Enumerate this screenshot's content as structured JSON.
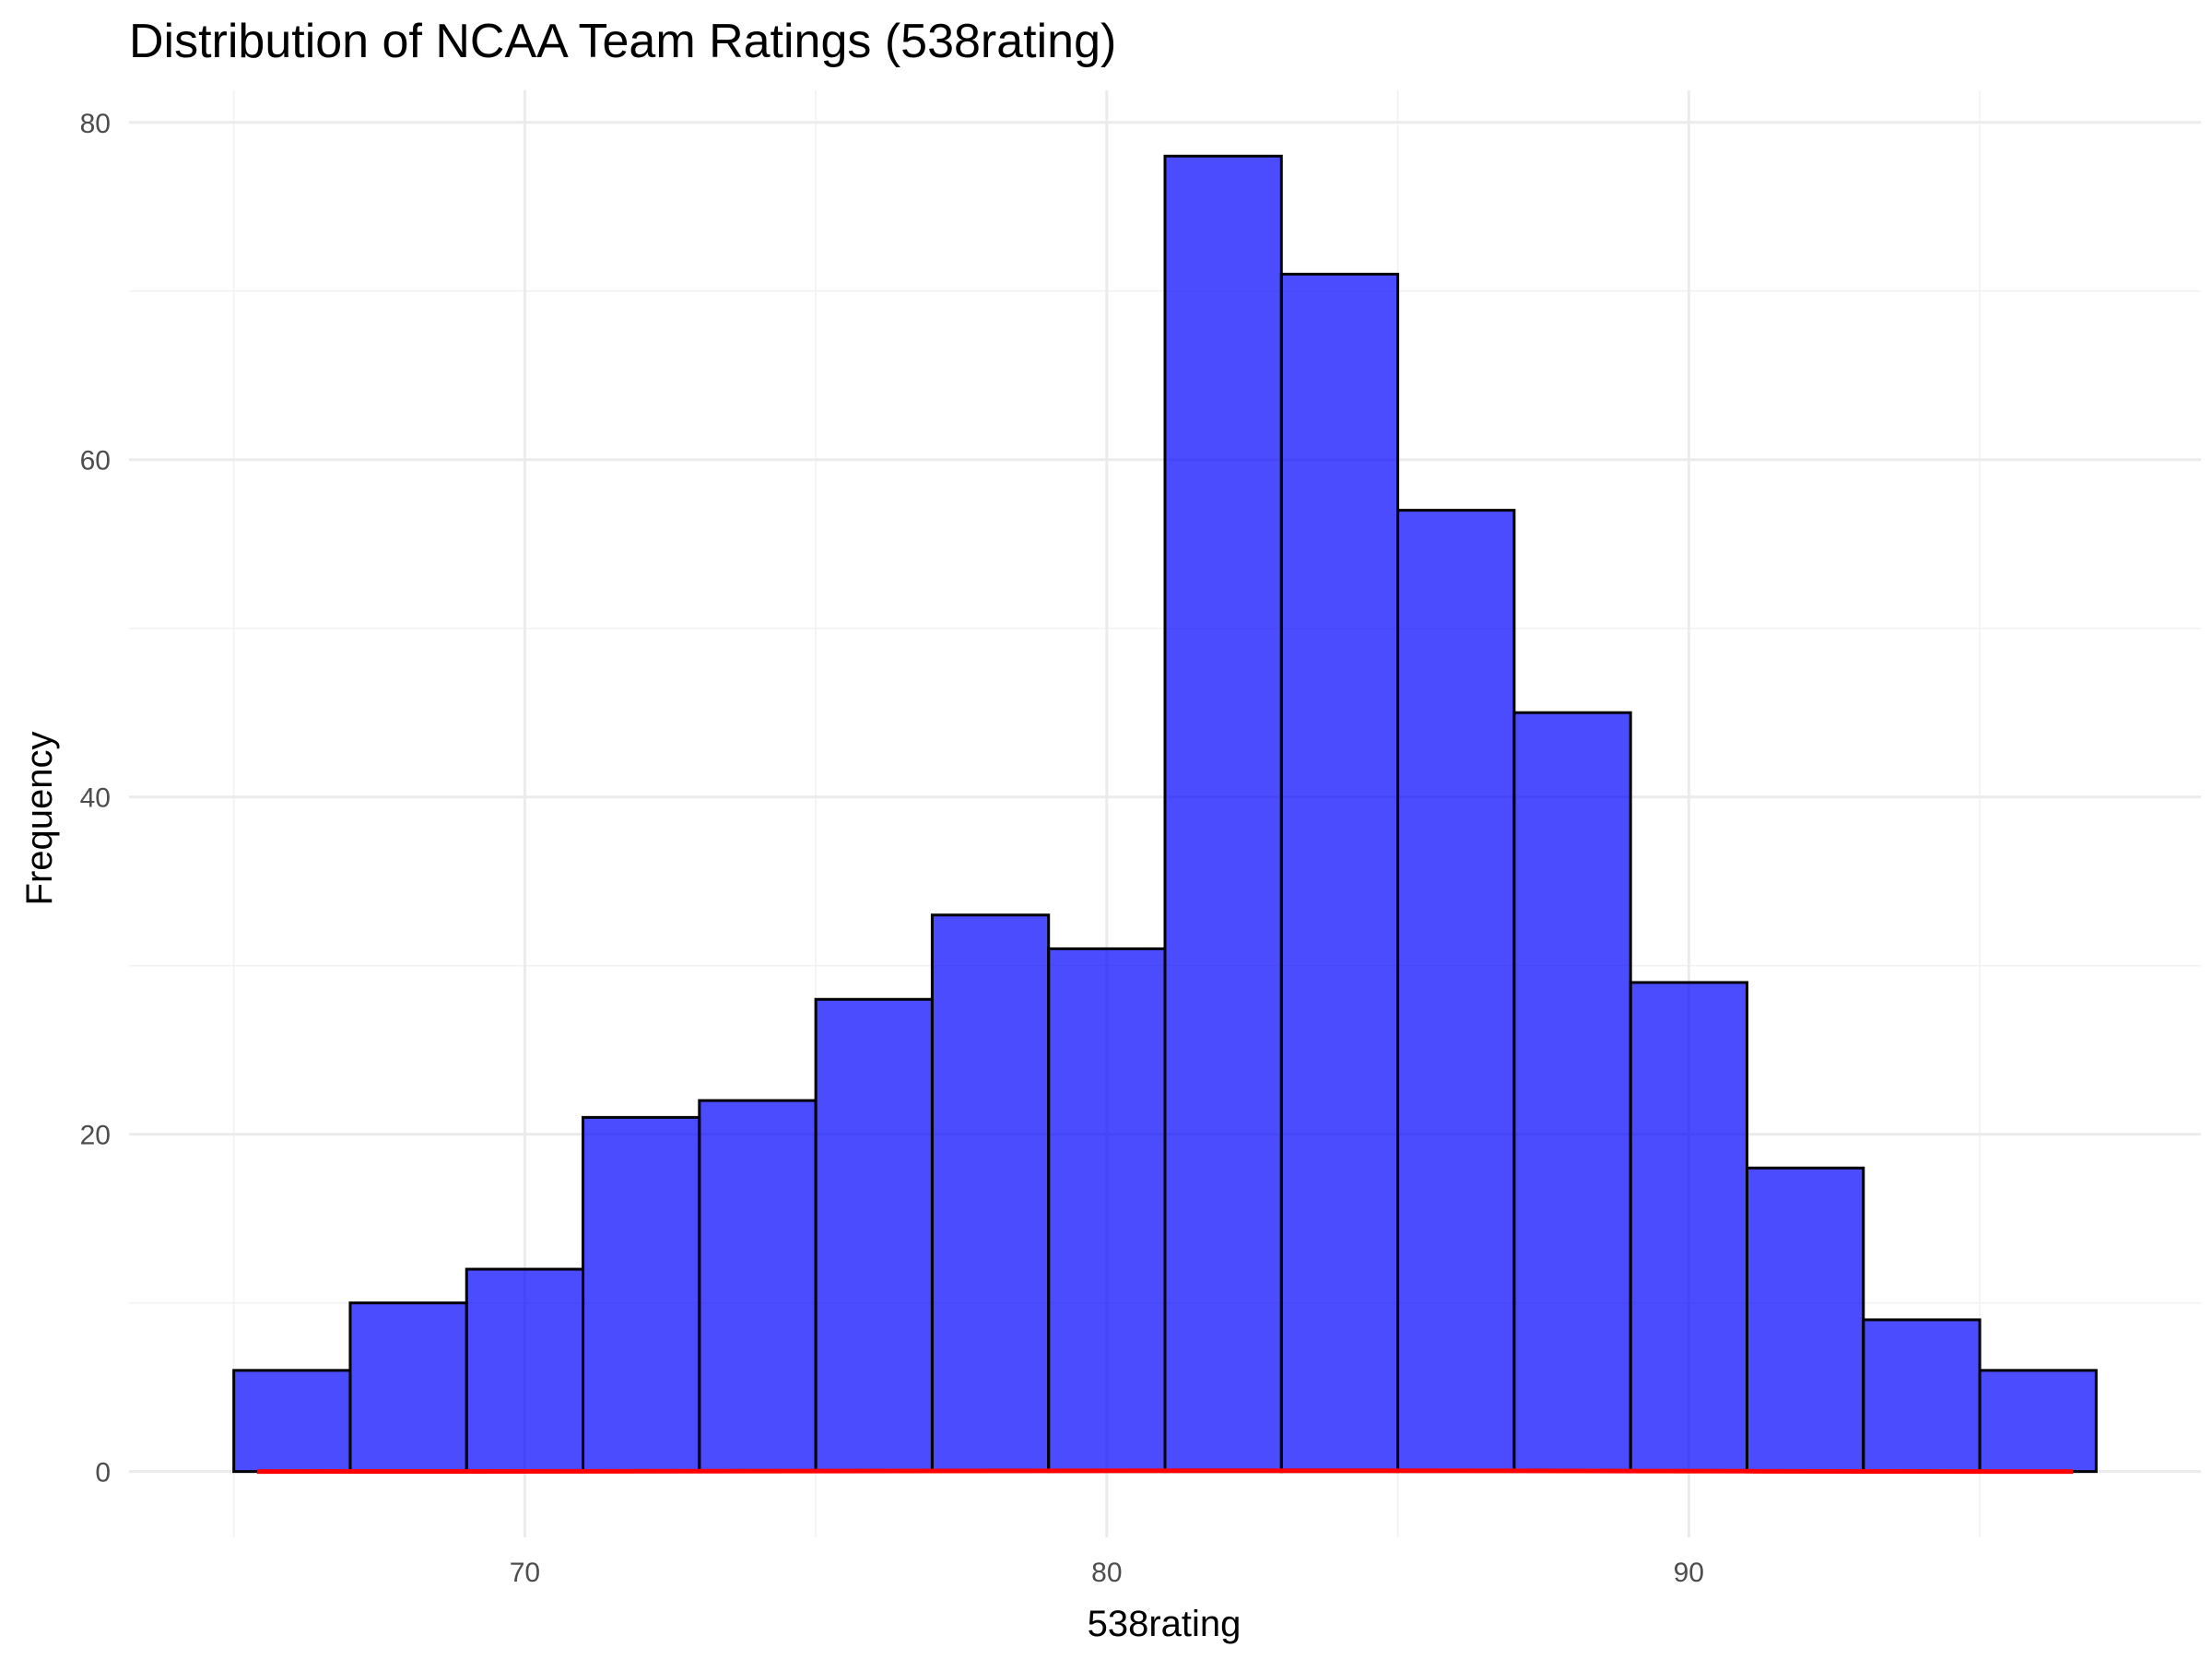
{
  "chart_data": {
    "type": "bar",
    "title": "Distribution of NCAA Team Ratings (538rating)",
    "xlabel": "538rating",
    "ylabel": "Frequency",
    "xlim": [
      63.2,
      98.8
    ],
    "ylim": [
      -3.9,
      81.9
    ],
    "x_ticks": [
      70,
      80,
      90
    ],
    "y_ticks": [
      0,
      20,
      40,
      60,
      80
    ],
    "grid": true,
    "bin_width": 2,
    "bins": [
      {
        "x0": 65,
        "x1": 67,
        "count": 6
      },
      {
        "x0": 67,
        "x1": 69,
        "count": 10
      },
      {
        "x0": 69,
        "x1": 71,
        "count": 12
      },
      {
        "x0": 71,
        "x1": 73,
        "count": 21
      },
      {
        "x0": 73,
        "x1": 75,
        "count": 22
      },
      {
        "x0": 75,
        "x1": 77,
        "count": 28
      },
      {
        "x0": 77,
        "x1": 79,
        "count": 33
      },
      {
        "x0": 79,
        "x1": 81,
        "count": 31
      },
      {
        "x0": 81,
        "x1": 83,
        "count": 78
      },
      {
        "x0": 83,
        "x1": 85,
        "count": 71
      },
      {
        "x0": 85,
        "x1": 87,
        "count": 57
      },
      {
        "x0": 87,
        "x1": 89,
        "count": 45
      },
      {
        "x0": 89,
        "x1": 91,
        "count": 29
      },
      {
        "x0": 91,
        "x1": 93,
        "count": 18
      },
      {
        "x0": 93,
        "x1": 95,
        "count": 9
      },
      {
        "x0": 95,
        "x1": 97,
        "count": 6
      }
    ],
    "density_line": {
      "color": "#ff0000",
      "x": [
        65.4,
        67,
        69,
        71,
        73,
        75,
        77,
        79,
        81,
        83,
        85,
        87,
        89,
        91,
        93,
        95,
        96.6
      ],
      "y": [
        0.002,
        0.005,
        0.009,
        0.014,
        0.02,
        0.027,
        0.034,
        0.04,
        0.047,
        0.05,
        0.046,
        0.038,
        0.027,
        0.016,
        0.008,
        0.004,
        0.002
      ]
    },
    "colors": {
      "bar_fill": "#0000ff",
      "bar_outline": "#000000"
    }
  }
}
